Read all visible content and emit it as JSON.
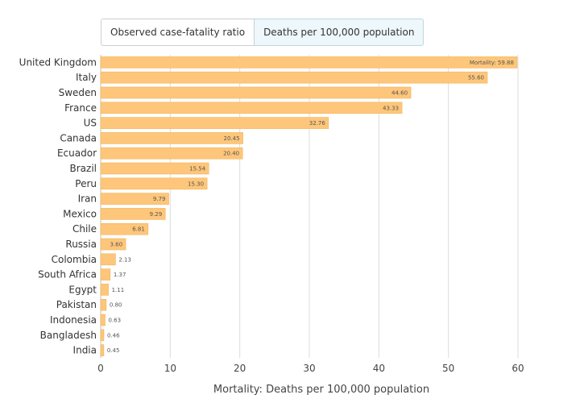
{
  "tabs": [
    {
      "label": "Observed case-fatality ratio",
      "active": false
    },
    {
      "label": "Deaths per 100,000 population",
      "active": true
    }
  ],
  "chart_data": {
    "type": "bar",
    "orientation": "horizontal",
    "categories": [
      "United Kingdom",
      "Italy",
      "Sweden",
      "France",
      "US",
      "Canada",
      "Ecuador",
      "Brazil",
      "Peru",
      "Iran",
      "Mexico",
      "Chile",
      "Russia",
      "Colombia",
      "South Africa",
      "Egypt",
      "Pakistan",
      "Indonesia",
      "Bangladesh",
      "India"
    ],
    "values": [
      59.88,
      55.6,
      44.6,
      43.33,
      32.76,
      20.45,
      20.4,
      15.54,
      15.3,
      9.79,
      9.29,
      6.81,
      3.6,
      2.13,
      1.37,
      1.11,
      0.8,
      0.63,
      0.46,
      0.45
    ],
    "value_labels": [
      "Mortality: 59.88",
      "55.60",
      "44.60",
      "43.33",
      "32.76",
      "20.45",
      "20.40",
      "15.54",
      "15.30",
      "9.79",
      "9.29",
      "6.81",
      "3.60",
      "2.13",
      "1.37",
      "1.11",
      "0.80",
      "0.63",
      "0.46",
      "0.45"
    ],
    "xlabel": "Mortality: Deaths per 100,000 population",
    "xlim": [
      0,
      60
    ],
    "xticks": [
      0,
      10,
      20,
      30,
      40,
      50,
      60
    ],
    "xtick_labels": [
      "0",
      "10",
      "20",
      "30",
      "40",
      "50",
      "60"
    ],
    "grid": true,
    "bar_color": "#fec67a",
    "bar_border_color": "#f2b35c"
  }
}
